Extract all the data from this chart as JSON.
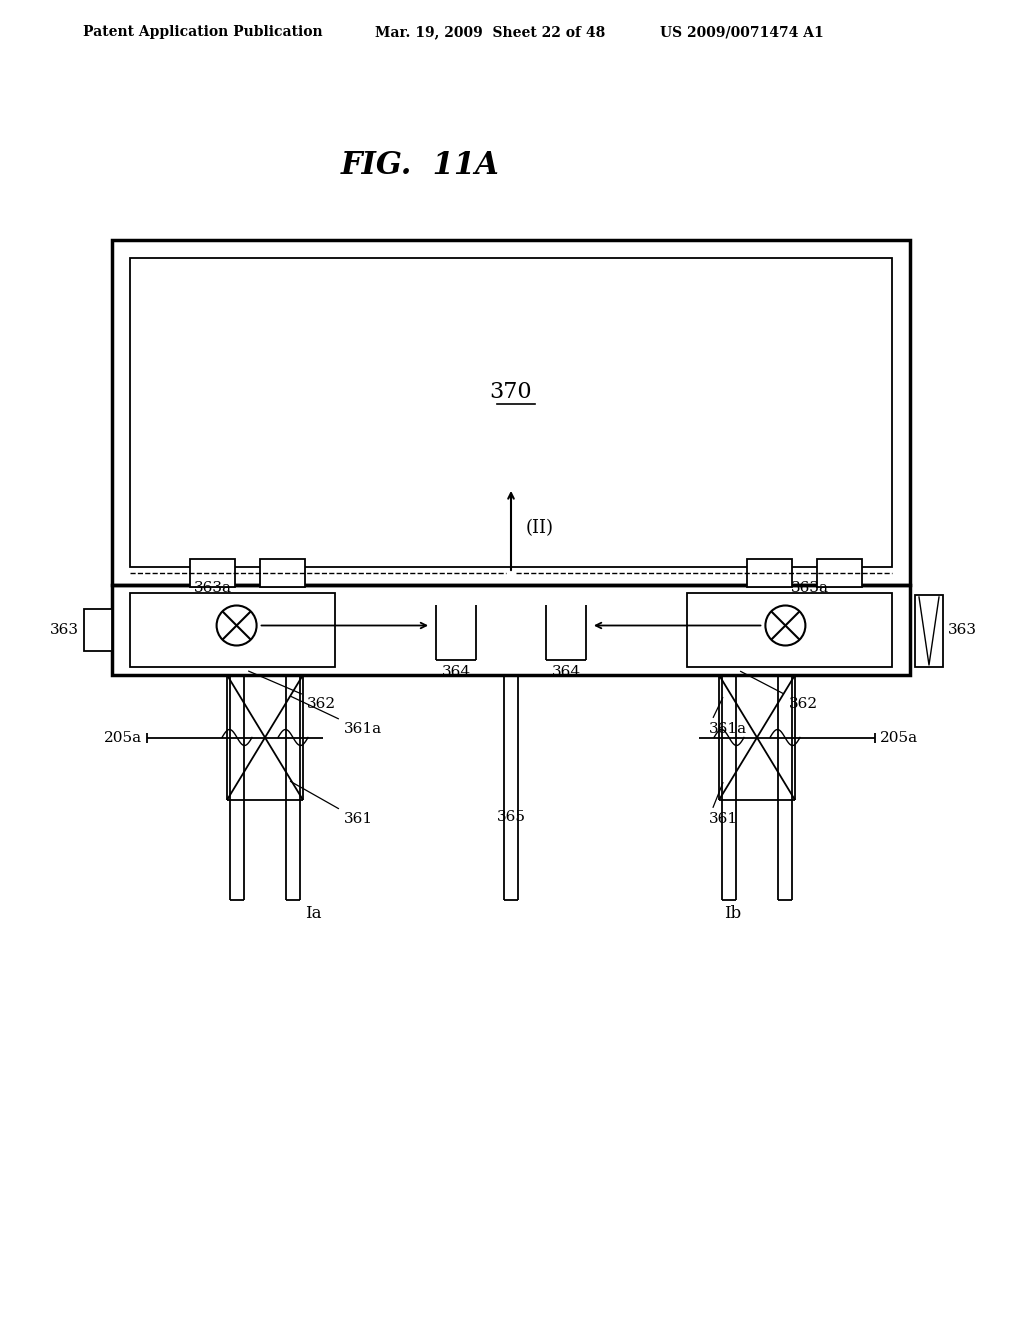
{
  "title": "FIG.  11A",
  "header_left": "Patent Application Publication",
  "header_mid": "Mar. 19, 2009  Sheet 22 of 48",
  "header_right": "US 2009/0071474 A1",
  "bg_color": "#ffffff",
  "label_370": "370",
  "label_363a_left": "363a",
  "label_363a_right": "363a",
  "label_362_left": "362",
  "label_362_right": "362",
  "label_363_left": "363",
  "label_363_right": "363",
  "label_364_left": "364",
  "label_364_right": "364",
  "label_361a_left": "361a",
  "label_361a_right": "361a",
  "label_361_left": "361",
  "label_361_right": "361",
  "label_365": "365",
  "label_205a_left": "205a",
  "label_205a_right": "205a",
  "label_Ia": "Ia",
  "label_Ib": "Ib",
  "label_II": "(II)"
}
